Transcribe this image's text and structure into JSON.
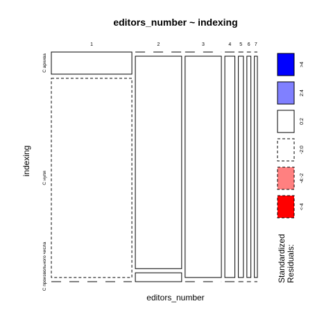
{
  "chart_data": {
    "type": "mosaic",
    "title": "editors_number ~ indexing",
    "xlabel": "editors_number",
    "ylabel": "indexing",
    "x_categories": [
      "1",
      "2",
      "3",
      "4",
      "5",
      "6",
      "7"
    ],
    "x_proportions": [
      0.4,
      0.23,
      0.18,
      0.05,
      0.025,
      0.02,
      0.015
    ],
    "y_categories": [
      "С архива",
      "С нуля",
      "С произвольного числа"
    ],
    "cells": [
      {
        "x": "1",
        "y": "С архива",
        "proportion": 0.1,
        "residual_class": "0:2"
      },
      {
        "x": "1",
        "y": "С нуля",
        "proportion": 0.9,
        "residual_class": "-2:0"
      },
      {
        "x": "1",
        "y": "С произвольного числа",
        "proportion": 0.0,
        "residual_class": "-2:0"
      },
      {
        "x": "2",
        "y": "С архива",
        "proportion": 0.0,
        "residual_class": "-2:0"
      },
      {
        "x": "2",
        "y": "С нуля",
        "proportion": 0.96,
        "residual_class": "0:2"
      },
      {
        "x": "2",
        "y": "С произвольного числа",
        "proportion": 0.04,
        "residual_class": "0:2"
      },
      {
        "x": "3",
        "y": "С архива",
        "proportion": 0.0,
        "residual_class": "-2:0"
      },
      {
        "x": "3",
        "y": "С нуля",
        "proportion": 1.0,
        "residual_class": "0:2"
      },
      {
        "x": "3",
        "y": "С произвольного числа",
        "proportion": 0.0,
        "residual_class": "-2:0"
      },
      {
        "x": "4",
        "y": "С архива",
        "proportion": 0.0,
        "residual_class": "-2:0"
      },
      {
        "x": "4",
        "y": "С нуля",
        "proportion": 1.0,
        "residual_class": "0:2"
      },
      {
        "x": "4",
        "y": "С произвольного числа",
        "proportion": 0.0,
        "residual_class": "-2:0"
      },
      {
        "x": "5",
        "y": "С архива",
        "proportion": 0.0,
        "residual_class": "-2:0"
      },
      {
        "x": "5",
        "y": "С нуля",
        "proportion": 1.0,
        "residual_class": "0:2"
      },
      {
        "x": "5",
        "y": "С произвольного числа",
        "proportion": 0.0,
        "residual_class": "-2:0"
      },
      {
        "x": "6",
        "y": "С архива",
        "proportion": 0.0,
        "residual_class": "-2:0"
      },
      {
        "x": "6",
        "y": "С нуля",
        "proportion": 1.0,
        "residual_class": "0:2"
      },
      {
        "x": "6",
        "y": "С произвольного числа",
        "proportion": 0.0,
        "residual_class": "-2:0"
      },
      {
        "x": "7",
        "y": "С архива",
        "proportion": 0.0,
        "residual_class": "-2:0"
      },
      {
        "x": "7",
        "y": "С нуля",
        "proportion": 1.0,
        "residual_class": "0:2"
      },
      {
        "x": "7",
        "y": "С произвольного числа",
        "proportion": 0.0,
        "residual_class": "-2:0"
      }
    ],
    "legend": {
      "title_lines": [
        "Standardized",
        "Residuals:"
      ],
      "placement": "right",
      "entries": [
        {
          "label": ">4",
          "color": "#0000ff",
          "dashed": false
        },
        {
          "label": "2:4",
          "color": "#8080ff",
          "dashed": false
        },
        {
          "label": "0:2",
          "color": "#ffffff",
          "dashed": false
        },
        {
          "label": "-2:0",
          "color": "#ffffff",
          "dashed": true
        },
        {
          "label": "-4:-2",
          "color": "#ff8080",
          "dashed": true
        },
        {
          "label": "<-4",
          "color": "#ff0000",
          "dashed": true
        }
      ]
    }
  }
}
